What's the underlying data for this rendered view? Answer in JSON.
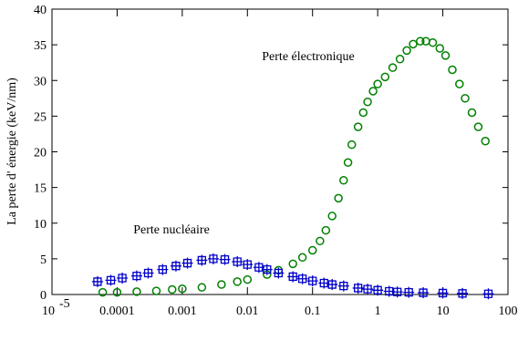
{
  "chart_data": {
    "type": "scatter",
    "ylabel": "La perte d' énergie (keV/nm)",
    "annotations": [
      "Perte électronique",
      "Perte nucléaire"
    ],
    "xscale": "log",
    "xlim": [
      1e-05,
      100
    ],
    "xticks": [
      {
        "value": 1e-05,
        "label": "10",
        "sup": "-5"
      },
      0.0001,
      0.001,
      0.01,
      0.1,
      1,
      10,
      100
    ],
    "ylim": [
      0,
      40
    ],
    "yticks": [
      0,
      5,
      10,
      15,
      20,
      25,
      30,
      35,
      40
    ],
    "series": [
      {
        "color": "#008000",
        "marker": "circle",
        "x": [
          6e-05,
          0.0001,
          0.0002,
          0.0004,
          0.0007,
          0.001,
          0.002,
          0.004,
          0.007,
          0.01,
          0.02,
          0.03,
          0.05,
          0.07,
          0.1,
          0.13,
          0.16,
          0.2,
          0.25,
          0.3,
          0.35,
          0.4,
          0.5,
          0.6,
          0.7,
          0.85,
          1,
          1.3,
          1.7,
          2.2,
          2.8,
          3.5,
          4.5,
          5.5,
          7,
          9,
          11,
          14,
          18,
          22,
          28,
          35,
          45
        ],
        "values": [
          0.3,
          0.3,
          0.4,
          0.5,
          0.7,
          0.8,
          1.0,
          1.4,
          1.8,
          2.1,
          2.8,
          3.4,
          4.3,
          5.2,
          6.2,
          7.5,
          9,
          11,
          13.5,
          16,
          18.5,
          21,
          23.5,
          25.5,
          27,
          28.5,
          29.5,
          30.5,
          31.8,
          33,
          34.2,
          35.1,
          35.5,
          35.5,
          35.3,
          34.5,
          33.5,
          31.5,
          29.5,
          27.5,
          25.5,
          23.5,
          21.5
        ]
      },
      {
        "color": "#0000cc",
        "marker": "cross-square",
        "x": [
          5e-05,
          8e-05,
          0.00012,
          0.0002,
          0.0003,
          0.0005,
          0.0008,
          0.0012,
          0.002,
          0.003,
          0.0045,
          0.007,
          0.01,
          0.015,
          0.02,
          0.03,
          0.05,
          0.07,
          0.1,
          0.15,
          0.2,
          0.3,
          0.5,
          0.7,
          1,
          1.5,
          2,
          3,
          5,
          10,
          20,
          50
        ],
        "values": [
          1.8,
          2.0,
          2.3,
          2.6,
          3.0,
          3.5,
          4.0,
          4.4,
          4.8,
          5.0,
          4.9,
          4.6,
          4.2,
          3.8,
          3.5,
          3.0,
          2.5,
          2.2,
          1.9,
          1.6,
          1.4,
          1.2,
          0.9,
          0.75,
          0.6,
          0.45,
          0.35,
          0.3,
          0.25,
          0.2,
          0.15,
          0.1
        ]
      }
    ]
  }
}
